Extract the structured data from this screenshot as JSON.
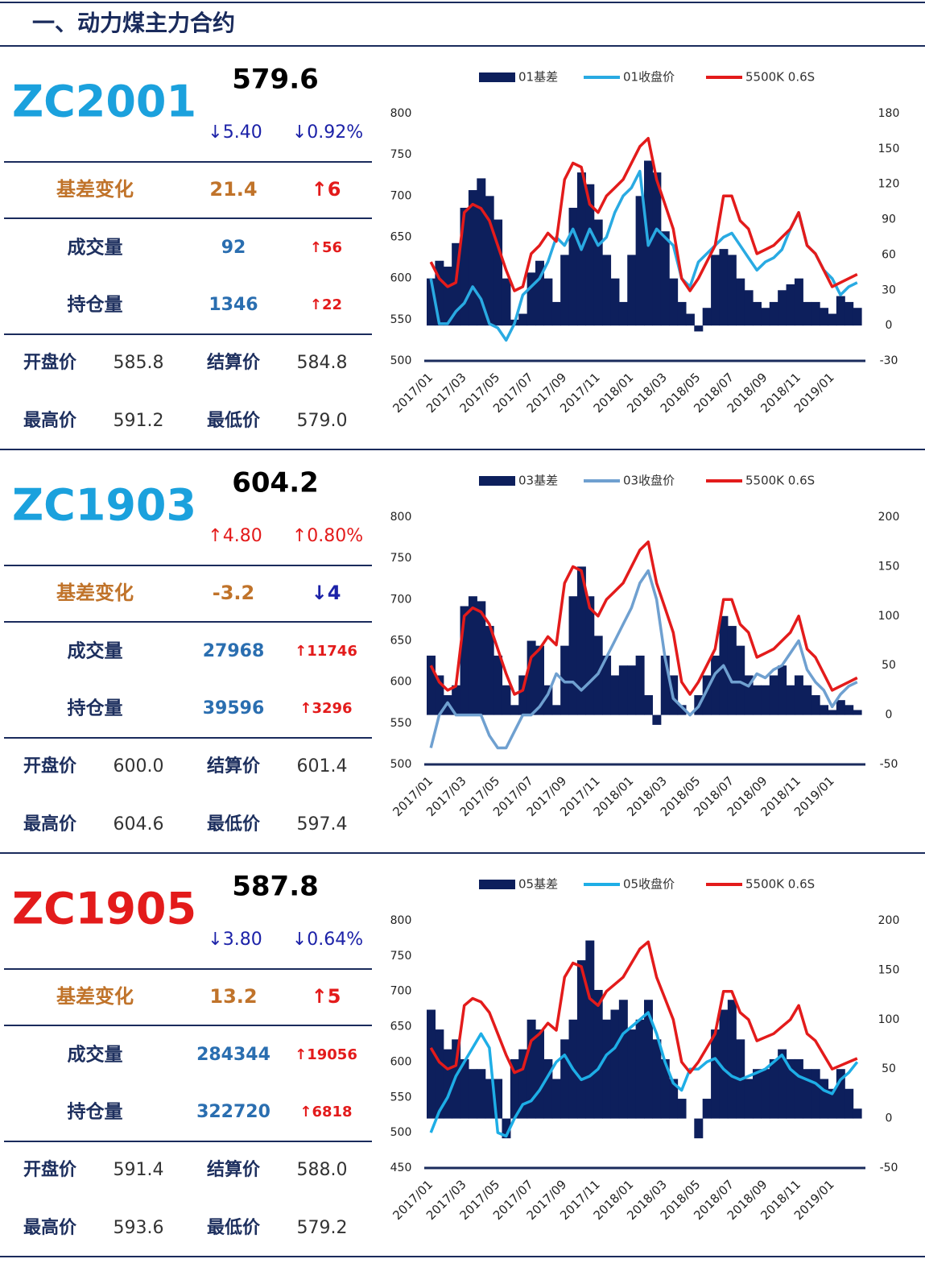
{
  "header": {
    "title": "一、动力煤主力合约"
  },
  "panels": [
    {
      "code": "ZC2001",
      "code_color": "#1ba1dd",
      "price": "579.6",
      "change": "↓5.40",
      "change_pct": "↓0.92%",
      "change_color": "#1c22a8",
      "basis": {
        "label": "基差变化",
        "value": "21.4",
        "change": "↑6",
        "change_color": "#e31b1b"
      },
      "volume": {
        "label": "成交量",
        "value": "92",
        "change": "↑56"
      },
      "open_interest": {
        "label": "持仓量",
        "value": "1346",
        "change": "↑22"
      },
      "prices": [
        [
          "开盘价",
          "585.8",
          "结算价",
          "584.8"
        ],
        [
          "最高价",
          "591.2",
          "最低价",
          "579.0"
        ]
      ]
    },
    {
      "code": "ZC1903",
      "code_color": "#1ba1dd",
      "price": "604.2",
      "change": "↑4.80",
      "change_pct": "↑0.80%",
      "change_color": "#e31b1b",
      "basis": {
        "label": "基差变化",
        "value": "-3.2",
        "change": "↓4",
        "change_color": "#1c22a8"
      },
      "volume": {
        "label": "成交量",
        "value": "27968",
        "change": "↑11746"
      },
      "open_interest": {
        "label": "持仓量",
        "value": "39596",
        "change": "↑3296"
      },
      "prices": [
        [
          "开盘价",
          "600.0",
          "结算价",
          "601.4"
        ],
        [
          "最高价",
          "604.6",
          "最低价",
          "597.4"
        ]
      ]
    },
    {
      "code": "ZC1905",
      "code_color": "#e31b1b",
      "price": "587.8",
      "change": "↓3.80",
      "change_pct": "↓0.64%",
      "change_color": "#1c22a8",
      "basis": {
        "label": "基差变化",
        "value": "13.2",
        "change": "↑5",
        "change_color": "#e31b1b"
      },
      "volume": {
        "label": "成交量",
        "value": "284344",
        "change": "↑19056"
      },
      "open_interest": {
        "label": "持仓量",
        "value": "322720",
        "change": "↑6818"
      },
      "prices": [
        [
          "开盘价",
          "591.4",
          "结算价",
          "588.0"
        ],
        [
          "最高价",
          "593.6",
          "最低价",
          "579.2"
        ]
      ]
    }
  ],
  "chart_data": [
    {
      "type": "combo",
      "categories": [
        "2017/01",
        null,
        null,
        null,
        "2017/03",
        null,
        null,
        null,
        "2017/05",
        null,
        null,
        null,
        "2017/07",
        null,
        null,
        null,
        "2017/09",
        null,
        null,
        null,
        "2017/11",
        null,
        null,
        null,
        "2018/01",
        null,
        null,
        null,
        "2018/03",
        null,
        null,
        null,
        "2018/05",
        null,
        null,
        null,
        "2018/07",
        null,
        null,
        null,
        "2018/09",
        null,
        null,
        null,
        "2018/11",
        null,
        null,
        null,
        "2019/01",
        null,
        null,
        null
      ],
      "ylim": [
        500,
        800
      ],
      "yticks": [
        500,
        550,
        600,
        650,
        700,
        750,
        800
      ],
      "y2lim": [
        -30,
        180
      ],
      "y2ticks": [
        -30,
        0,
        30,
        60,
        90,
        120,
        150,
        180
      ],
      "series": [
        {
          "name": "01基差",
          "color": "#0d1f5c",
          "axis": "y2",
          "kind": "area",
          "values": [
            40,
            55,
            50,
            70,
            100,
            115,
            125,
            110,
            90,
            40,
            5,
            10,
            45,
            55,
            40,
            20,
            60,
            100,
            130,
            120,
            90,
            60,
            40,
            20,
            60,
            110,
            140,
            130,
            80,
            40,
            20,
            10,
            -5,
            15,
            60,
            65,
            60,
            40,
            30,
            20,
            15,
            20,
            30,
            35,
            40,
            20,
            20,
            15,
            10,
            25,
            20,
            15
          ]
        },
        {
          "name": "01收盘价",
          "color": "#29aae2",
          "axis": "y",
          "kind": "line",
          "values": [
            600,
            545,
            545,
            560,
            570,
            590,
            575,
            545,
            540,
            525,
            545,
            580,
            590,
            600,
            620,
            650,
            640,
            660,
            635,
            660,
            640,
            650,
            680,
            700,
            710,
            730,
            640,
            660,
            650,
            640,
            600,
            590,
            620,
            630,
            640,
            650,
            655,
            640,
            625,
            610,
            620,
            625,
            635,
            660,
            680,
            640,
            630,
            610,
            600,
            580,
            590,
            595
          ]
        },
        {
          "name": "5500K 0.6S",
          "color": "#e31b1b",
          "axis": "y",
          "kind": "line",
          "values": [
            620,
            600,
            590,
            595,
            680,
            690,
            685,
            670,
            640,
            610,
            585,
            590,
            630,
            640,
            655,
            645,
            720,
            740,
            735,
            690,
            680,
            700,
            710,
            720,
            740,
            760,
            770,
            720,
            690,
            660,
            600,
            585,
            600,
            620,
            640,
            700,
            700,
            670,
            660,
            630,
            635,
            640,
            650,
            660,
            680,
            640,
            630,
            610,
            590,
            595,
            600,
            605
          ]
        }
      ]
    },
    {
      "type": "combo",
      "categories": [
        "2017/01",
        null,
        null,
        null,
        "2017/03",
        null,
        null,
        null,
        "2017/05",
        null,
        null,
        null,
        "2017/07",
        null,
        null,
        null,
        "2017/09",
        null,
        null,
        null,
        "2017/11",
        null,
        null,
        null,
        "2018/01",
        null,
        null,
        null,
        "2018/03",
        null,
        null,
        null,
        "2018/05",
        null,
        null,
        null,
        "2018/07",
        null,
        null,
        null,
        "2018/09",
        null,
        null,
        null,
        "2018/11",
        null,
        null,
        null,
        "2019/01",
        null,
        null,
        null
      ],
      "ylim": [
        500,
        800
      ],
      "yticks": [
        500,
        550,
        600,
        650,
        700,
        750,
        800
      ],
      "y2lim": [
        -50,
        200
      ],
      "y2ticks": [
        -50,
        0,
        50,
        100,
        150,
        200
      ],
      "series": [
        {
          "name": "03基差",
          "color": "#0d1f5c",
          "axis": "y2",
          "kind": "area",
          "values": [
            60,
            40,
            20,
            30,
            110,
            120,
            115,
            90,
            60,
            30,
            10,
            40,
            75,
            70,
            30,
            10,
            70,
            120,
            150,
            120,
            80,
            60,
            40,
            50,
            50,
            60,
            20,
            -10,
            60,
            40,
            10,
            0,
            20,
            40,
            60,
            100,
            90,
            70,
            40,
            30,
            30,
            40,
            50,
            30,
            40,
            30,
            20,
            10,
            5,
            15,
            10,
            5
          ]
        },
        {
          "name": "03收盘价",
          "color": "#6fa0d0",
          "axis": "y",
          "kind": "line",
          "values": [
            520,
            560,
            575,
            560,
            560,
            560,
            560,
            535,
            520,
            520,
            540,
            560,
            560,
            570,
            585,
            610,
            600,
            600,
            590,
            600,
            610,
            630,
            650,
            670,
            690,
            720,
            735,
            700,
            630,
            580,
            570,
            560,
            570,
            590,
            610,
            620,
            600,
            600,
            595,
            610,
            605,
            615,
            620,
            635,
            650,
            615,
            600,
            590,
            570,
            585,
            595,
            600
          ]
        },
        {
          "name": "5500K 0.6S",
          "color": "#e31b1b",
          "axis": "y",
          "kind": "line",
          "values": [
            620,
            600,
            590,
            595,
            680,
            690,
            685,
            670,
            640,
            610,
            585,
            590,
            630,
            640,
            655,
            645,
            720,
            740,
            735,
            690,
            680,
            700,
            710,
            720,
            740,
            760,
            770,
            720,
            690,
            660,
            600,
            585,
            600,
            620,
            640,
            700,
            700,
            670,
            660,
            630,
            635,
            640,
            650,
            660,
            680,
            640,
            630,
            610,
            590,
            595,
            600,
            605
          ]
        }
      ]
    },
    {
      "type": "combo",
      "categories": [
        "2017/01",
        null,
        null,
        null,
        "2017/03",
        null,
        null,
        null,
        "2017/05",
        null,
        null,
        null,
        "2017/07",
        null,
        null,
        null,
        "2017/09",
        null,
        null,
        null,
        "2017/11",
        null,
        null,
        null,
        "2018/01",
        null,
        null,
        null,
        "2018/03",
        null,
        null,
        null,
        "2018/05",
        null,
        null,
        null,
        "2018/07",
        null,
        null,
        null,
        "2018/09",
        null,
        null,
        null,
        "2018/11",
        null,
        null,
        null,
        "2019/01",
        null,
        null,
        null
      ],
      "ylim": [
        450,
        800
      ],
      "yticks": [
        450,
        500,
        550,
        600,
        650,
        700,
        750,
        800
      ],
      "y2lim": [
        -50,
        200
      ],
      "y2ticks": [
        -50,
        0,
        50,
        100,
        150,
        200
      ],
      "series": [
        {
          "name": "05基差",
          "color": "#0d1f5c",
          "axis": "y2",
          "kind": "area",
          "values": [
            110,
            90,
            70,
            80,
            60,
            50,
            50,
            40,
            40,
            -20,
            60,
            70,
            100,
            90,
            60,
            40,
            80,
            100,
            160,
            180,
            130,
            100,
            110,
            120,
            90,
            100,
            120,
            80,
            60,
            40,
            20,
            0,
            -20,
            20,
            90,
            110,
            120,
            80,
            40,
            50,
            50,
            60,
            70,
            60,
            60,
            50,
            50,
            40,
            30,
            50,
            30,
            10
          ]
        },
        {
          "name": "05收盘价",
          "color": "#1eaee6",
          "axis": "y",
          "kind": "line",
          "values": [
            500,
            530,
            550,
            580,
            600,
            620,
            640,
            620,
            500,
            495,
            520,
            540,
            545,
            560,
            580,
            600,
            610,
            590,
            575,
            580,
            590,
            610,
            620,
            640,
            650,
            660,
            670,
            640,
            600,
            570,
            560,
            590,
            590,
            600,
            605,
            590,
            580,
            575,
            580,
            585,
            590,
            600,
            610,
            590,
            580,
            575,
            570,
            560,
            555,
            575,
            585,
            600
          ]
        },
        {
          "name": "5500K 0.6S",
          "color": "#e31b1b",
          "axis": "y",
          "kind": "line",
          "values": [
            620,
            600,
            590,
            595,
            680,
            690,
            685,
            670,
            640,
            610,
            585,
            590,
            630,
            640,
            655,
            645,
            720,
            740,
            735,
            690,
            680,
            700,
            710,
            720,
            740,
            760,
            770,
            720,
            690,
            660,
            600,
            585,
            600,
            620,
            640,
            700,
            700,
            670,
            660,
            630,
            635,
            640,
            650,
            660,
            680,
            640,
            630,
            610,
            590,
            595,
            600,
            605
          ]
        }
      ]
    }
  ]
}
